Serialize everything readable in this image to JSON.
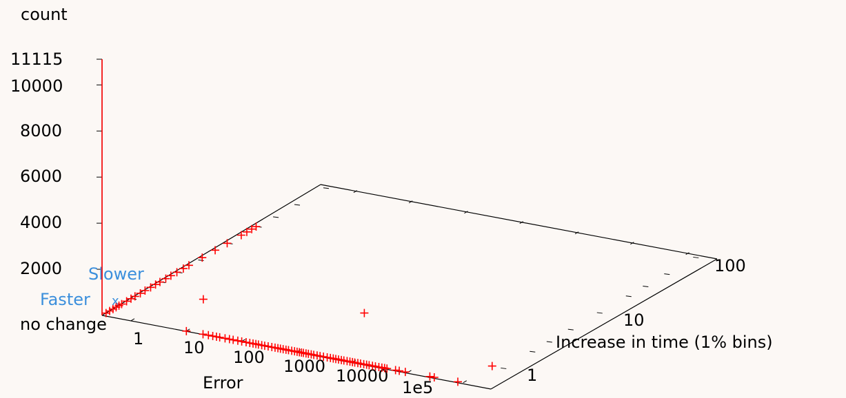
{
  "chart_data": {
    "type": "scatter",
    "title": "",
    "zlabel": "count",
    "xlabel": "Error",
    "ylabel": "Increase in time (1% bins)",
    "x_scale": "log",
    "y_scale": "log",
    "x_ticks": [
      "1",
      "10",
      "100",
      "1000",
      "10000",
      "1e5"
    ],
    "y_ticks": [
      "1",
      "10",
      "100"
    ],
    "z_ticks": [
      "11115",
      "10000",
      "8000",
      "6000",
      "4000",
      "2000"
    ],
    "z_annotations": {
      "slower": "Slower",
      "faster": "Faster",
      "no_change": "no change"
    },
    "zlim": [
      0,
      11115
    ],
    "grid": false,
    "color": "#ff0000",
    "spike": {
      "x": 0.3,
      "y": 0.5,
      "z": 11115
    },
    "series": [
      {
        "points_along_y": [
          [
            0.3,
            0.55,
            0
          ],
          [
            0.3,
            0.6,
            0
          ],
          [
            0.3,
            0.65,
            0
          ],
          [
            0.3,
            0.7,
            0
          ],
          [
            0.3,
            0.75,
            0
          ],
          [
            0.3,
            0.8,
            0
          ],
          [
            0.3,
            0.9,
            0
          ],
          [
            0.3,
            1.0,
            0
          ],
          [
            0.3,
            1.1,
            0
          ],
          [
            0.3,
            1.25,
            0
          ],
          [
            0.3,
            1.4,
            0
          ],
          [
            0.3,
            1.6,
            0
          ],
          [
            0.3,
            1.8,
            0
          ],
          [
            0.3,
            2.0,
            0
          ],
          [
            0.3,
            2.3,
            0
          ],
          [
            0.3,
            2.6,
            0
          ],
          [
            0.3,
            3.0,
            0
          ],
          [
            0.3,
            3.5,
            0
          ],
          [
            0.3,
            4.0,
            0
          ],
          [
            0.3,
            5.5,
            0
          ],
          [
            0.3,
            7.5,
            0
          ],
          [
            0.3,
            10,
            0
          ],
          [
            0.3,
            14,
            0
          ],
          [
            0.3,
            16,
            0
          ],
          [
            0.3,
            18,
            0
          ],
          [
            0.3,
            20,
            0
          ]
        ],
        "points_along_x": [
          [
            10,
            0.5,
            0
          ],
          [
            20,
            0.5,
            0
          ],
          [
            25,
            0.5,
            0
          ],
          [
            30,
            0.5,
            0
          ],
          [
            35,
            0.5,
            0
          ],
          [
            40,
            0.5,
            0
          ],
          [
            50,
            0.5,
            0
          ],
          [
            60,
            0.5,
            0
          ],
          [
            70,
            0.5,
            0
          ],
          [
            85,
            0.5,
            0
          ],
          [
            100,
            0.5,
            0
          ],
          [
            120,
            0.5,
            0
          ],
          [
            140,
            0.5,
            0
          ],
          [
            160,
            0.5,
            0
          ],
          [
            180,
            0.5,
            0
          ],
          [
            200,
            0.5,
            0
          ],
          [
            230,
            0.5,
            0
          ],
          [
            260,
            0.5,
            0
          ],
          [
            300,
            0.5,
            0
          ],
          [
            350,
            0.5,
            0
          ],
          [
            400,
            0.5,
            0
          ],
          [
            450,
            0.5,
            0
          ],
          [
            500,
            0.5,
            0
          ],
          [
            560,
            0.5,
            0
          ],
          [
            630,
            0.5,
            0
          ],
          [
            700,
            0.5,
            0
          ],
          [
            800,
            0.5,
            0
          ],
          [
            900,
            0.5,
            0
          ],
          [
            1000,
            0.5,
            0
          ],
          [
            1100,
            0.5,
            0
          ],
          [
            1200,
            0.5,
            0
          ],
          [
            1300,
            0.5,
            0
          ],
          [
            1450,
            0.5,
            0
          ],
          [
            1600,
            0.5,
            0
          ],
          [
            1800,
            0.5,
            0
          ],
          [
            2000,
            0.5,
            0
          ],
          [
            2300,
            0.5,
            0
          ],
          [
            2600,
            0.5,
            0
          ],
          [
            3000,
            0.5,
            0
          ],
          [
            3500,
            0.5,
            0
          ],
          [
            4000,
            0.5,
            0
          ],
          [
            4500,
            0.5,
            0
          ],
          [
            5000,
            0.5,
            0
          ],
          [
            5600,
            0.5,
            0
          ],
          [
            6300,
            0.5,
            0
          ],
          [
            7000,
            0.5,
            0
          ],
          [
            8000,
            0.5,
            0
          ],
          [
            9000,
            0.5,
            0
          ],
          [
            10000,
            0.5,
            0
          ],
          [
            11000,
            0.5,
            0
          ],
          [
            12500,
            0.5,
            0
          ],
          [
            14000,
            0.5,
            0
          ],
          [
            16000,
            0.5,
            0
          ],
          [
            18000,
            0.5,
            0
          ],
          [
            20000,
            0.5,
            0
          ],
          [
            23000,
            0.5,
            0
          ],
          [
            26000,
            0.5,
            0
          ],
          [
            30000,
            0.5,
            0
          ],
          [
            34000,
            0.5,
            0
          ],
          [
            38000,
            0.5,
            0
          ],
          [
            42000,
            0.5,
            0
          ],
          [
            60000,
            0.5,
            0
          ],
          [
            70000,
            0.5,
            0
          ],
          [
            90000,
            0.5,
            0
          ],
          [
            250000,
            0.5,
            0
          ],
          [
            300000,
            0.5,
            0
          ],
          [
            800000,
            0.5,
            0
          ]
        ],
        "isolated_points": [
          [
            1000,
            2.5,
            0
          ],
          [
            3,
            1.5,
            0
          ],
          [
            1000000,
            1,
            0
          ]
        ]
      }
    ]
  }
}
